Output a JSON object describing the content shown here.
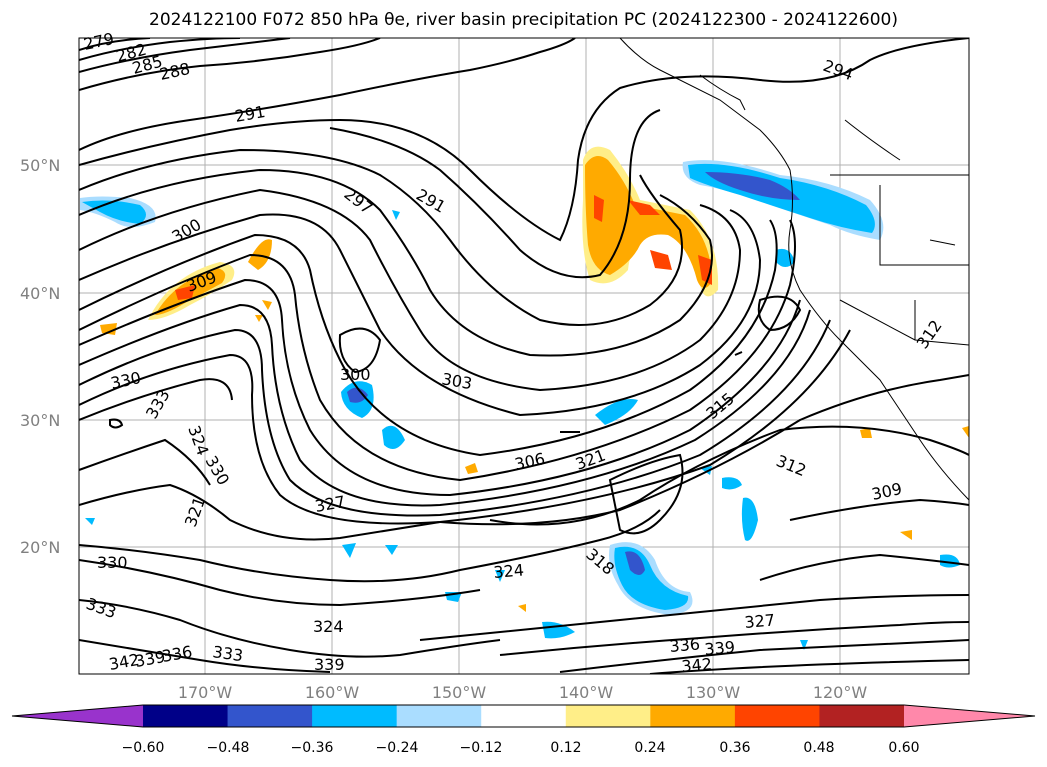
{
  "title": "2024122100 F072 850 hPa θe, river basin precipitation PC (2024122300 - 2024122600)",
  "lat_labels": [
    "50°N",
    "40°N",
    "30°N",
    "20°N"
  ],
  "lon_labels": [
    "170°W",
    "160°W",
    "150°W",
    "140°W",
    "130°W",
    "120°W"
  ],
  "contour_labels": [
    "279",
    "282",
    "285",
    "288",
    "291",
    "294",
    "291",
    "297",
    "300",
    "309",
    "330",
    "333",
    "324",
    "330",
    "321",
    "300",
    "303",
    "306",
    "321",
    "315",
    "312",
    "309",
    "327",
    "330",
    "324",
    "318",
    "333",
    "324",
    "336",
    "339",
    "342",
    "333",
    "339",
    "327",
    "336",
    "339",
    "342",
    "312"
  ],
  "colorbar": {
    "ticks": [
      "−0.60",
      "−0.48",
      "−0.36",
      "−0.24",
      "−0.12",
      "0.12",
      "0.24",
      "0.36",
      "0.48",
      "0.60"
    ],
    "colors": [
      "#9933cc",
      "#000088",
      "#3355cc",
      "#00bbff",
      "#aaddff",
      "#ffffff",
      "#ffee88",
      "#ffaa00",
      "#ff4400",
      "#b22222",
      "#ff88aa"
    ]
  }
}
